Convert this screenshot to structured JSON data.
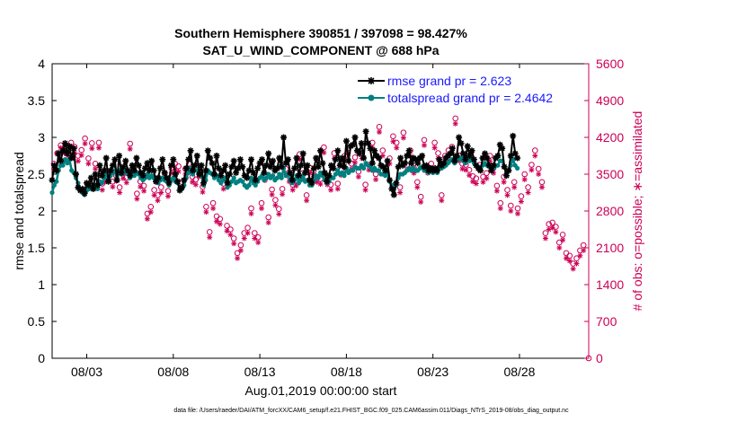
{
  "chart_data": {
    "type": "line",
    "title_line1": "Southern Hemisphere 390851 / 397098 = 98.427%",
    "title_line2": "SAT_U_WIND_COMPONENT @ 688 hPa",
    "xlabel": "Aug.01,2019 00:00:00 start",
    "ylabel_left": "rmse and totalspread",
    "ylabel_right": "# of obs: o=possible; ∗=assimilated",
    "footer": "data file: /Users/raeder/DAI/ATM_forcXX/CAM6_setup/f.e21.FHIST_BGC.f09_025.CAM6assim.011/Diags_NTrS_2019-08/obs_diag_output.nc",
    "xlim_days": [
      1.0,
      32.0
    ],
    "x_tick_days": [
      3,
      8,
      13,
      18,
      23,
      28
    ],
    "x_tick_labels": [
      "08/03",
      "08/08",
      "08/13",
      "08/18",
      "08/23",
      "08/28"
    ],
    "ylim_left": [
      0,
      4
    ],
    "y_ticks_left": [
      0,
      0.5,
      1,
      1.5,
      2,
      2.5,
      3,
      3.5,
      4
    ],
    "y_tick_labels_left": [
      "0",
      "0.5",
      "1",
      "1.5",
      "2",
      "2.5",
      "3",
      "3.5",
      "4"
    ],
    "ylim_right": [
      0,
      5600
    ],
    "y_ticks_right": [
      0,
      700,
      1400,
      2100,
      2800,
      3500,
      4200,
      4900,
      5600
    ],
    "y_tick_labels_right": [
      "0",
      "700",
      "1400",
      "2100",
      "2800",
      "3500",
      "4200",
      "4900",
      "5600"
    ],
    "colors": {
      "rmse": "#000000",
      "spread": "#008080",
      "obs": "#cc0055",
      "text": "#000000"
    },
    "legend": [
      {
        "label": "rmse grand pr = 2.623",
        "color": "#1a1aff"
      },
      {
        "label": "totalspread grand pr = 2.4642",
        "color": "#1a1aff"
      }
    ],
    "series": [
      {
        "name": "rmse",
        "values": [
          2.42,
          2.62,
          2.55,
          2.78,
          2.68,
          2.82,
          2.92,
          2.78,
          2.88,
          2.72,
          2.85,
          2.5,
          2.32,
          2.28,
          2.3,
          2.24,
          2.38,
          2.35,
          2.45,
          2.3,
          2.5,
          2.35,
          2.62,
          2.48,
          2.55,
          2.72,
          2.4,
          2.55,
          2.62,
          2.7,
          2.42,
          2.75,
          2.52,
          2.6,
          2.68,
          2.55,
          2.48,
          2.62,
          2.55,
          2.72,
          2.62,
          2.52,
          2.48,
          2.58,
          2.65,
          2.55,
          2.68,
          2.55,
          2.4,
          2.45,
          2.58,
          2.7,
          2.52,
          2.45,
          2.38,
          2.62,
          2.7,
          2.5,
          2.4,
          2.28,
          2.32,
          2.42,
          2.58,
          2.7,
          2.82,
          2.55,
          2.62,
          2.75,
          2.5,
          2.62,
          2.38,
          2.55,
          2.82,
          2.72,
          2.65,
          2.5,
          2.75,
          2.58,
          2.48,
          2.55,
          2.62,
          2.38,
          2.5,
          2.6,
          2.68,
          2.52,
          2.58,
          2.7,
          2.6,
          2.48,
          2.45,
          2.55,
          2.7,
          2.52,
          2.42,
          2.58,
          2.65,
          2.7,
          2.52,
          2.62,
          2.78,
          2.6,
          2.68,
          2.55,
          2.58,
          2.72,
          2.6,
          3.0,
          2.65,
          2.7,
          2.52,
          2.42,
          2.58,
          2.72,
          2.48,
          2.62,
          2.78,
          2.52,
          2.62,
          2.42,
          2.38,
          2.58,
          2.72,
          2.6,
          2.82,
          2.65,
          2.52,
          2.4,
          2.48,
          2.62,
          2.58,
          2.7,
          2.82,
          2.62,
          2.72,
          2.6,
          2.95,
          2.68,
          2.88,
          2.9,
          3.0,
          2.82,
          2.78,
          2.92,
          2.72,
          3.08,
          2.92,
          2.85,
          2.65,
          2.82,
          2.75,
          2.72,
          2.62,
          2.6,
          2.55,
          2.68,
          2.42,
          2.3,
          2.22,
          2.38,
          2.6,
          2.72,
          2.62,
          2.65,
          2.75,
          2.82,
          2.65,
          2.72,
          2.7,
          2.65,
          2.72,
          2.75,
          2.6,
          2.62,
          2.55,
          2.58,
          2.55,
          2.58,
          2.55,
          2.7,
          2.62,
          2.65,
          2.72,
          2.75,
          2.78,
          2.85,
          2.68,
          2.75,
          3.0,
          2.92,
          2.78,
          2.7,
          2.88,
          2.75,
          2.82,
          2.7,
          2.62,
          2.58,
          2.55,
          2.72,
          2.78,
          2.72,
          2.62,
          2.55,
          2.62,
          2.72,
          2.75,
          2.9,
          2.85,
          2.6,
          2.48,
          2.55,
          2.75,
          3.02,
          2.78,
          2.72
        ]
      },
      {
        "name": "totalspread",
        "values": [
          2.25,
          2.35,
          2.4,
          2.55,
          2.62,
          2.62,
          2.7,
          2.65,
          2.7,
          2.55,
          2.52,
          2.45,
          2.38,
          2.3,
          2.25,
          2.22,
          2.28,
          2.3,
          2.32,
          2.3,
          2.35,
          2.3,
          2.4,
          2.38,
          2.45,
          2.5,
          2.42,
          2.48,
          2.52,
          2.55,
          2.48,
          2.55,
          2.5,
          2.52,
          2.55,
          2.5,
          2.45,
          2.5,
          2.48,
          2.52,
          2.5,
          2.45,
          2.42,
          2.45,
          2.5,
          2.45,
          2.48,
          2.45,
          2.4,
          2.38,
          2.42,
          2.45,
          2.42,
          2.4,
          2.35,
          2.42,
          2.45,
          2.4,
          2.38,
          2.32,
          2.3,
          2.35,
          2.45,
          2.52,
          2.58,
          2.5,
          2.55,
          2.55,
          2.5,
          2.48,
          2.35,
          2.42,
          2.55,
          2.52,
          2.5,
          2.45,
          2.48,
          2.42,
          2.38,
          2.42,
          2.45,
          2.32,
          2.35,
          2.4,
          2.45,
          2.38,
          2.4,
          2.42,
          2.4,
          2.35,
          2.32,
          2.35,
          2.45,
          2.38,
          2.35,
          2.4,
          2.45,
          2.48,
          2.42,
          2.45,
          2.5,
          2.45,
          2.48,
          2.42,
          2.45,
          2.5,
          2.45,
          2.58,
          2.48,
          2.5,
          2.42,
          2.38,
          2.42,
          2.48,
          2.38,
          2.42,
          2.48,
          2.4,
          2.42,
          2.35,
          2.35,
          2.42,
          2.48,
          2.45,
          2.52,
          2.48,
          2.42,
          2.38,
          2.4,
          2.45,
          2.45,
          2.5,
          2.55,
          2.5,
          2.52,
          2.48,
          2.58,
          2.52,
          2.55,
          2.55,
          2.6,
          2.58,
          2.58,
          2.62,
          2.58,
          2.65,
          2.62,
          2.6,
          2.55,
          2.58,
          2.55,
          2.55,
          2.5,
          2.5,
          2.48,
          2.52,
          2.4,
          2.35,
          2.3,
          2.35,
          2.45,
          2.5,
          2.5,
          2.52,
          2.55,
          2.58,
          2.55,
          2.58,
          2.55,
          2.55,
          2.58,
          2.6,
          2.55,
          2.55,
          2.52,
          2.55,
          2.52,
          2.55,
          2.52,
          2.58,
          2.58,
          2.6,
          2.62,
          2.65,
          2.68,
          2.7,
          2.65,
          2.68,
          2.72,
          2.72,
          2.68,
          2.65,
          2.72,
          2.68,
          2.7,
          2.65,
          2.62,
          2.6,
          2.58,
          2.62,
          2.65,
          2.62,
          2.6,
          2.55,
          2.58,
          2.62,
          2.62,
          2.68,
          2.68,
          2.6,
          2.52,
          2.55,
          2.62,
          2.7,
          2.62,
          2.58
        ]
      },
      {
        "name": "obs_possible",
        "values": [
          3700,
          3900,
          4050,
          4000,
          3950,
          4100,
          4020,
          3850,
          3960,
          4180,
          3800,
          4090,
          3700,
          4100,
          3320,
          3460,
          3500,
          3360,
          3470,
          3250,
          3520,
          3440,
          4080,
          3650,
          3130,
          3360,
          3280,
          2750,
          2880,
          3200,
          3100,
          3250,
          3520,
          3180,
          3620,
          3700,
          3650,
          3350,
          3600,
          3700,
          3450,
          3400,
          3550,
          3260,
          2880,
          2400,
          2950,
          2700,
          2650,
          3320,
          2520,
          2450,
          2280,
          2000,
          2150,
          2380,
          2480,
          2850,
          2380,
          2300,
          2950,
          3480,
          2680,
          3210,
          3010,
          2840,
          3220,
          3600,
          3460,
          3300,
          3380,
          3880,
          3520,
          3100,
          3620,
          3560,
          3450,
          3410,
          4010,
          3400,
          3300,
          3900,
          3320,
          3580,
          3850,
          4000,
          3700,
          3820,
          3550,
          3900,
          3300,
          3680,
          4100,
          3500,
          4400,
          3950,
          3600,
          3800,
          4220,
          4100,
          3250,
          4290,
          3680,
          3950,
          3620,
          3350,
          3070,
          4150,
          3620,
          3700,
          4100,
          3900,
          3100,
          3850,
          3950,
          4020,
          4560,
          3860,
          3700,
          3680,
          3580,
          3460,
          3420,
          3680,
          3450,
          3520,
          3850,
          3620,
          3280,
          2950,
          3450,
          3200,
          2900,
          3350,
          2850,
          3080,
          3500,
          3250,
          3680,
          3950,
          3600,
          3350,
          2380,
          2550,
          2580,
          2500,
          2200,
          2350,
          2000,
          1950,
          1800,
          1900,
          2050,
          2150
        ]
      },
      {
        "name": "obs_assimilated",
        "values": [
          3600,
          3880,
          4000,
          3900,
          3850,
          4000,
          3900,
          3750,
          3860,
          4080,
          3700,
          3990,
          3600,
          4000,
          3200,
          3360,
          3400,
          3260,
          3370,
          3150,
          3420,
          3340,
          3980,
          3550,
          3030,
          3260,
          3180,
          2650,
          2780,
          3100,
          3000,
          3150,
          3420,
          3080,
          3520,
          3600,
          3550,
          3250,
          3500,
          3600,
          3350,
          3300,
          3450,
          3160,
          2780,
          2300,
          2850,
          2600,
          2550,
          3220,
          2420,
          2350,
          2180,
          1900,
          2050,
          2280,
          2380,
          2750,
          2280,
          2200,
          2850,
          3380,
          2580,
          3110,
          2910,
          2740,
          3120,
          3500,
          3360,
          3200,
          3280,
          3780,
          3420,
          3000,
          3520,
          3460,
          3350,
          3310,
          3910,
          3300,
          3200,
          3800,
          3220,
          3480,
          3750,
          3900,
          3600,
          3720,
          3450,
          3800,
          3200,
          3580,
          4000,
          3400,
          4300,
          3850,
          3500,
          3700,
          4120,
          4000,
          3150,
          4190,
          3580,
          3850,
          3520,
          3250,
          2970,
          4050,
          3520,
          3600,
          4000,
          3800,
          3000,
          3750,
          3850,
          3920,
          4460,
          3760,
          3600,
          3580,
          3480,
          3360,
          3320,
          3580,
          3350,
          3420,
          3750,
          3520,
          3180,
          2850,
          3350,
          3100,
          2800,
          3250,
          2750,
          2980,
          3400,
          3150,
          3580,
          3850,
          3500,
          3250,
          2280,
          2450,
          2480,
          2400,
          2100,
          2250,
          1900,
          1850,
          1700,
          1800,
          1950,
          2050
        ]
      }
    ]
  }
}
